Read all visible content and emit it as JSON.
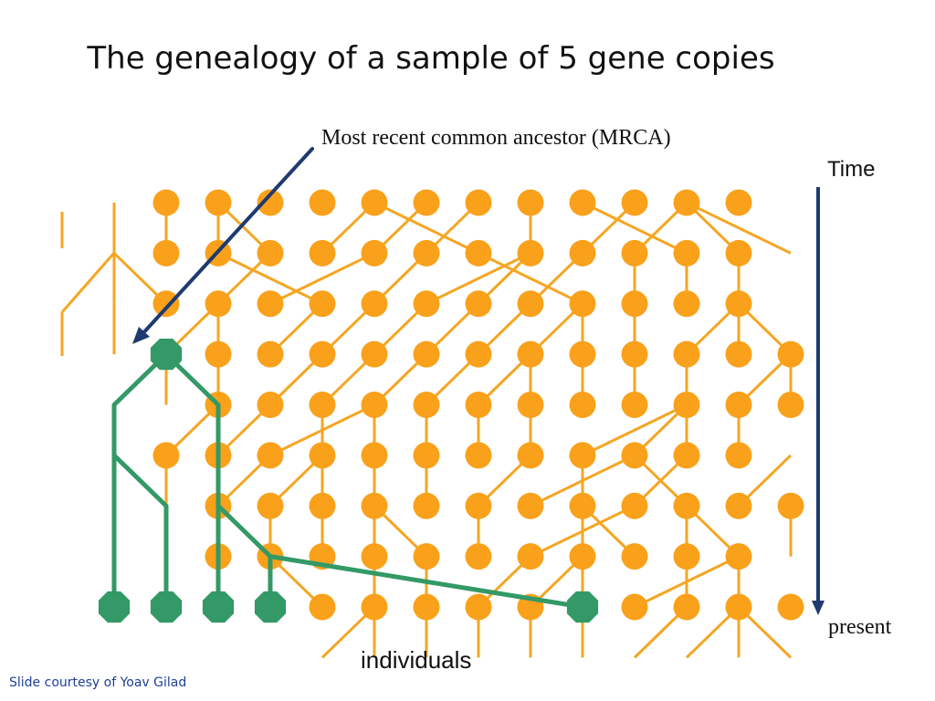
{
  "slide": {
    "title": "The genealogy of a sample of 5 gene copies",
    "credit": "Slide courtesy of Yoav Gilad"
  },
  "labels": {
    "mrca": "Most recent common ancestor (MRCA)",
    "time_axis": "Time",
    "present": "present",
    "x_axis": "individuals"
  },
  "generations": 9,
  "columns": 14,
  "missing_nodes": [
    [
      0,
      0
    ],
    [
      0,
      13
    ],
    [
      1,
      0
    ],
    [
      1,
      13
    ],
    [
      2,
      0
    ],
    [
      2,
      13
    ],
    [
      3,
      0
    ],
    [
      3,
      1
    ],
    [
      4,
      0
    ],
    [
      4,
      1
    ],
    [
      5,
      0
    ],
    [
      5,
      13
    ],
    [
      6,
      0
    ],
    [
      6,
      1
    ],
    [
      7,
      0
    ],
    [
      7,
      1
    ],
    [
      7,
      13
    ],
    [
      8,
      0
    ],
    [
      8,
      1
    ],
    [
      8,
      2
    ],
    [
      8,
      3
    ]
  ],
  "parent_links": [
    [
      1,
      1,
      1
    ],
    [
      1,
      2,
      2
    ],
    [
      1,
      3,
      3
    ],
    [
      1,
      4,
      3
    ],
    [
      1,
      5,
      6
    ],
    [
      1,
      6,
      7
    ],
    [
      1,
      7,
      8
    ],
    [
      1,
      8,
      6
    ],
    [
      1,
      9,
      9
    ],
    [
      1,
      10,
      11
    ],
    [
      1,
      11,
      12
    ],
    [
      1,
      12,
      10
    ],
    [
      1,
      13,
      12
    ],
    [
      1,
      14,
      12
    ],
    [
      2,
      1,
      1
    ],
    [
      2,
      2,
      1
    ],
    [
      2,
      3,
      4
    ],
    [
      2,
      4,
      6
    ],
    [
      2,
      5,
      3
    ],
    [
      2,
      6,
      7
    ],
    [
      2,
      7,
      9
    ],
    [
      2,
      8,
      9
    ],
    [
      2,
      9,
      10
    ],
    [
      2,
      10,
      8
    ],
    [
      2,
      11,
      11
    ],
    [
      2,
      12,
      12
    ],
    [
      2,
      13,
      13
    ],
    [
      3,
      1,
      1
    ],
    [
      3,
      2,
      3
    ],
    [
      3,
      3,
      3
    ],
    [
      3,
      4,
      5
    ],
    [
      3,
      5,
      6
    ],
    [
      3,
      6,
      7
    ],
    [
      3,
      7,
      8
    ],
    [
      3,
      8,
      9
    ],
    [
      3,
      9,
      10
    ],
    [
      3,
      10,
      10
    ],
    [
      3,
      11,
      11
    ],
    [
      3,
      12,
      13
    ],
    [
      3,
      13,
      13
    ],
    [
      3,
      14,
      13
    ],
    [
      4,
      2,
      2
    ],
    [
      4,
      3,
      3
    ],
    [
      4,
      4,
      5
    ],
    [
      4,
      5,
      6
    ],
    [
      4,
      6,
      7
    ],
    [
      4,
      7,
      8
    ],
    [
      4,
      8,
      9
    ],
    [
      4,
      9,
      9
    ],
    [
      4,
      10,
      10
    ],
    [
      4,
      11,
      11
    ],
    [
      4,
      12,
      12
    ],
    [
      4,
      13,
      14
    ],
    [
      4,
      14,
      14
    ],
    [
      5,
      2,
      3
    ],
    [
      5,
      3,
      4
    ],
    [
      5,
      4,
      6
    ],
    [
      5,
      5,
      5
    ],
    [
      5,
      6,
      6
    ],
    [
      5,
      7,
      7
    ],
    [
      5,
      8,
      8
    ],
    [
      5,
      9,
      9
    ],
    [
      5,
      10,
      12
    ],
    [
      5,
      11,
      12
    ],
    [
      5,
      12,
      12
    ],
    [
      5,
      13,
      13
    ],
    [
      6,
      2,
      2
    ],
    [
      6,
      3,
      4
    ],
    [
      6,
      4,
      5
    ],
    [
      6,
      5,
      5
    ],
    [
      6,
      6,
      6
    ],
    [
      6,
      7,
      7
    ],
    [
      6,
      8,
      9
    ],
    [
      6,
      9,
      11
    ],
    [
      6,
      10,
      10
    ],
    [
      6,
      11,
      12
    ],
    [
      6,
      12,
      11
    ],
    [
      6,
      13,
      14
    ],
    [
      7,
      3,
      3
    ],
    [
      7,
      4,
      4
    ],
    [
      7,
      5,
      5
    ],
    [
      7,
      6,
      6
    ],
    [
      7,
      7,
      6
    ],
    [
      7,
      8,
      8
    ],
    [
      7,
      9,
      11
    ],
    [
      7,
      10,
      10
    ],
    [
      7,
      11,
      10
    ],
    [
      7,
      12,
      12
    ],
    [
      7,
      13,
      12
    ],
    [
      7,
      14,
      14
    ],
    [
      8,
      3,
      3
    ],
    [
      8,
      4,
      4
    ],
    [
      8,
      5,
      4
    ],
    [
      8,
      6,
      6
    ],
    [
      8,
      7,
      7
    ],
    [
      8,
      8,
      9
    ],
    [
      8,
      9,
      10
    ],
    [
      8,
      10,
      10
    ],
    [
      8,
      11,
      13
    ],
    [
      8,
      12,
      12
    ],
    [
      8,
      13,
      13
    ],
    [
      9,
      5,
      6
    ],
    [
      9,
      6,
      6
    ],
    [
      9,
      7,
      7
    ],
    [
      9,
      8,
      8
    ],
    [
      9,
      9,
      9
    ],
    [
      9,
      10,
      10
    ],
    [
      9,
      11,
      12
    ],
    [
      9,
      12,
      13
    ],
    [
      9,
      13,
      13
    ],
    [
      9,
      14,
      13
    ]
  ],
  "sample_genealogy": {
    "mrca": [
      3,
      1
    ],
    "samples": [
      [
        8,
        0
      ],
      [
        8,
        1
      ],
      [
        8,
        2
      ],
      [
        8,
        3
      ],
      [
        8,
        9
      ]
    ],
    "paths": [
      [
        [
          3,
          1
        ],
        [
          4,
          0
        ],
        [
          5,
          0
        ],
        [
          6,
          1
        ],
        [
          8,
          1
        ]
      ],
      [
        [
          5,
          0
        ],
        [
          8,
          0
        ]
      ],
      [
        [
          3,
          1
        ],
        [
          4,
          2
        ],
        [
          6,
          2
        ],
        [
          8,
          2
        ]
      ],
      [
        [
          6,
          2
        ],
        [
          7,
          3
        ],
        [
          8,
          3
        ]
      ],
      [
        [
          7,
          3
        ],
        [
          8,
          9
        ]
      ]
    ]
  },
  "colors": {
    "node": "#f9a11b",
    "edge": "#f5a623",
    "genealogy": "#339966",
    "arrow": "#1f3a6e",
    "time_arrow": "#1f3a6e"
  }
}
